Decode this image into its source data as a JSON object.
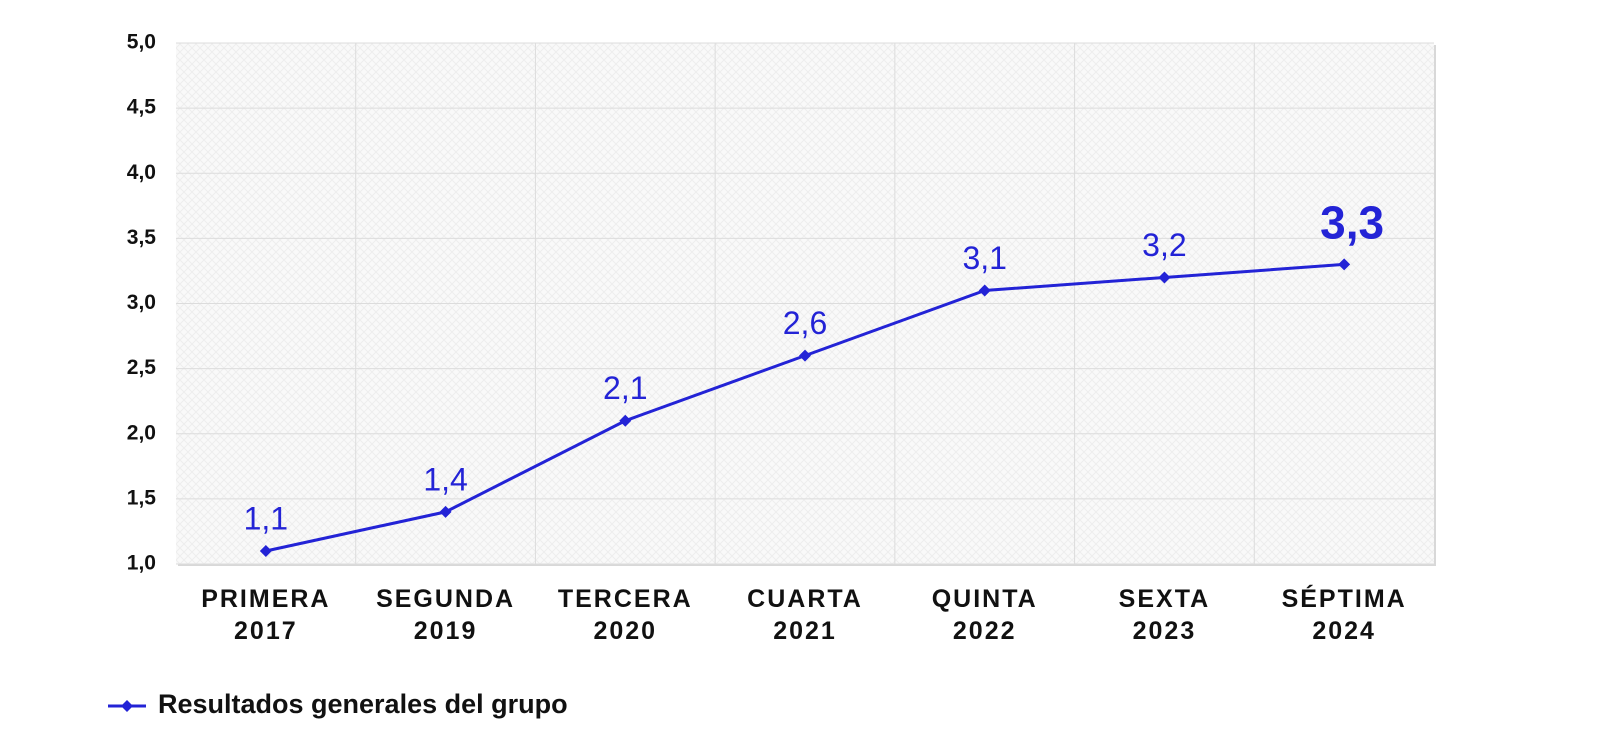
{
  "chart_data": {
    "type": "line",
    "categories": [
      "PRIMERA 2017",
      "SEGUNDA 2019",
      "TERCERA 2020",
      "CUARTA 2021",
      "QUINTA 2022",
      "SEXTA 2023",
      "SÉPTIMA 2024"
    ],
    "series": [
      {
        "name": "Resultados generales del grupo",
        "color": "#2323d6",
        "values": [
          1.1,
          1.4,
          2.1,
          2.6,
          3.1,
          3.2,
          3.3
        ],
        "value_labels": [
          "1,1",
          "1,4",
          "2,1",
          "2,6",
          "3,1",
          "3,2",
          "3,3"
        ]
      }
    ],
    "ylim": [
      1,
      5
    ],
    "yticks": [
      {
        "value": 1,
        "label": "1,0"
      },
      {
        "value": 1.5,
        "label": "1,5"
      },
      {
        "value": 2,
        "label": "2,0"
      },
      {
        "value": 2.5,
        "label": "2,5"
      },
      {
        "value": 3,
        "label": "3,0"
      },
      {
        "value": 3.5,
        "label": "3,5"
      },
      {
        "value": 4,
        "label": "4,0"
      },
      {
        "value": 4.5,
        "label": "4,5"
      },
      {
        "value": 5,
        "label": "5,0"
      }
    ],
    "grid": true,
    "legend": "bottom-left"
  }
}
